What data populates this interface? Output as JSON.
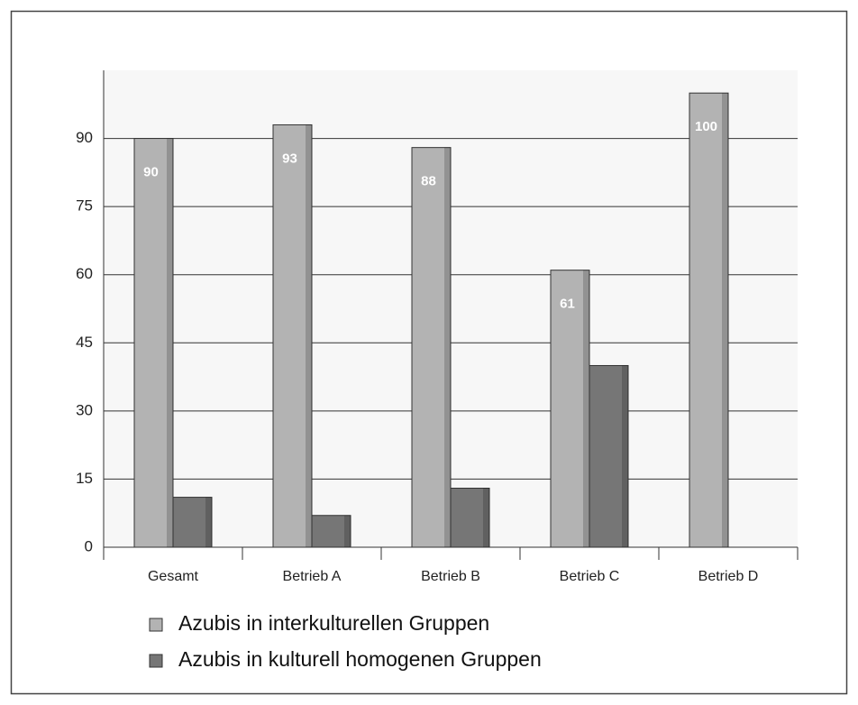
{
  "chart_data": {
    "type": "bar",
    "categories": [
      "Gesamt",
      "Betrieb A",
      "Betrieb B",
      "Betrieb C",
      "Betrieb D"
    ],
    "series": [
      {
        "name": "Azubis in interkulturellen Gruppen",
        "color": "#b3b3b3",
        "values": [
          90,
          93,
          88,
          61,
          100
        ]
      },
      {
        "name": "Azubis in kulturell homogenen Gruppen",
        "color": "#767676",
        "values": [
          11,
          7,
          13,
          40,
          0
        ]
      }
    ],
    "ylim": [
      0,
      105
    ],
    "yticks": [
      0,
      15,
      30,
      45,
      60,
      75,
      90
    ],
    "grid": true
  }
}
